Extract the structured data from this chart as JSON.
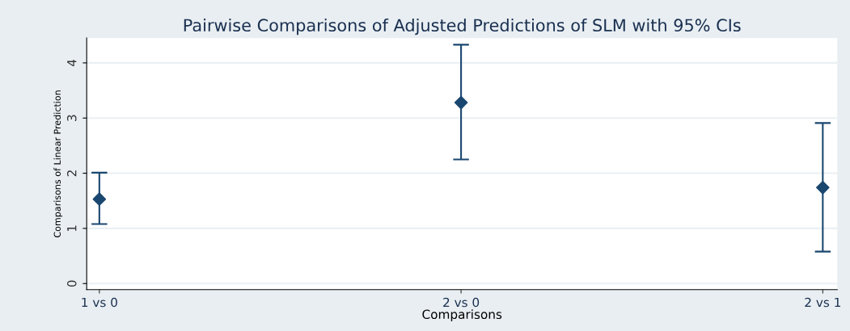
{
  "chart_data": {
    "type": "scatter",
    "title": "Pairwise Comparisons of Adjusted Predictions of SLM with 95% CIs",
    "xlabel": "Comparisons",
    "ylabel": "Comparisons of Linear Prediction",
    "categories": [
      "1 vs 0",
      "2 vs 0",
      "2 vs 1"
    ],
    "series": [
      {
        "color": "#1a476f",
        "values": [
          1.53,
          3.28,
          1.74
        ],
        "errors": [
          [
            1.08,
            2.01
          ],
          [
            2.25,
            4.33
          ],
          [
            0.58,
            2.91
          ]
        ]
      }
    ],
    "ylim": [
      -0.11,
      4.45
    ],
    "yticks": [
      0,
      1,
      2,
      3,
      4
    ],
    "grid": "y",
    "marker": "diamond"
  }
}
